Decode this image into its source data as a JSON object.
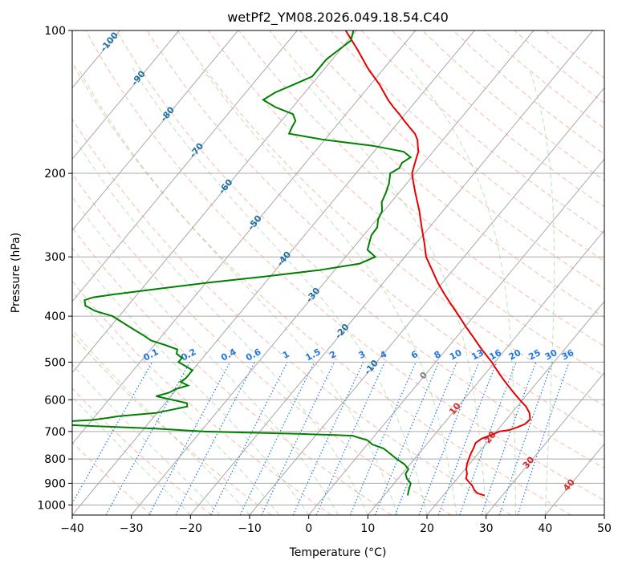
{
  "chart_data": {
    "type": "skew-t",
    "title": "wetPf2_YM08.2026.049.18.54.C40",
    "xlabel": "Temperature (°C)",
    "ylabel": "Pressure (hPa)",
    "xlim": [
      -40,
      50
    ],
    "ylim": [
      1050,
      100
    ],
    "x_ticks": [
      -40,
      -30,
      -20,
      -10,
      0,
      10,
      20,
      30,
      40,
      50
    ],
    "y_ticks": [
      100,
      200,
      300,
      400,
      500,
      600,
      700,
      800,
      900,
      1000
    ],
    "y_tick_labels": [
      "100",
      "200",
      "300",
      "400",
      "500",
      "600",
      "700",
      "800",
      "900",
      "1000"
    ],
    "x_tick_labels": [
      "−40",
      "−30",
      "−20",
      "−10",
      "0",
      "10",
      "20",
      "30",
      "40",
      "50"
    ],
    "colors": {
      "temperature": "#e60000",
      "dewpoint": "#008000",
      "isotherm_major": "#a8a8a8",
      "dry_adiabat": "#f5a58a",
      "moist_adiabat": "#8fd08f",
      "mixing_ratio": "#1f77e0",
      "isotherm_label": "#1f6fa8",
      "dry_adiabat_label": "#d62728"
    },
    "series": [
      {
        "name": "Temperature",
        "pressure": [
          955,
          945,
          930,
          910,
          895,
          880,
          860,
          840,
          820,
          800,
          780,
          760,
          740,
          725,
          710,
          700,
          695,
          685,
          675,
          660,
          640,
          620,
          600,
          580,
          560,
          540,
          520,
          500,
          470,
          440,
          420,
          400,
          380,
          360,
          340,
          320,
          300,
          280,
          260,
          240,
          220,
          205,
          200,
          195,
          190,
          185,
          180,
          175,
          170,
          165,
          160,
          155,
          150,
          145,
          140,
          130,
          120,
          110,
          100
        ],
        "temperature": [
          27.0,
          25.5,
          24.5,
          23.5,
          22.5,
          21.5,
          21.0,
          20.2,
          19.6,
          19.2,
          18.8,
          18.5,
          18.1,
          18.5,
          19.8,
          20.5,
          22.0,
          23.0,
          23.8,
          24.0,
          23.0,
          21.5,
          19.5,
          17.5,
          15.5,
          13.5,
          11.5,
          9.5,
          6.0,
          2.5,
          0.0,
          -2.5,
          -5.2,
          -8.0,
          -10.8,
          -13.5,
          -16.4,
          -18.7,
          -21.3,
          -24.0,
          -27.2,
          -29.7,
          -30.5,
          -31.0,
          -31.5,
          -32.0,
          -32.5,
          -33.4,
          -34.3,
          -35.6,
          -37.4,
          -39.2,
          -41.0,
          -43.0,
          -44.9,
          -48.5,
          -52.8,
          -57.0,
          -61.8
        ]
      },
      {
        "name": "Dewpoint",
        "pressure": [
          955,
          930,
          900,
          880,
          860,
          840,
          820,
          800,
          780,
          760,
          745,
          730,
          720,
          715,
          712,
          708,
          704,
          700,
          690,
          682,
          678,
          675,
          672,
          670,
          668,
          662,
          655,
          650,
          640,
          630,
          620,
          610,
          600,
          590,
          580,
          570,
          560,
          550,
          540,
          530,
          520,
          510,
          500,
          490,
          480,
          470,
          460,
          450,
          440,
          420,
          400,
          390,
          380,
          370,
          365,
          360,
          350,
          340,
          330,
          320,
          310,
          300,
          290,
          280,
          270,
          260,
          250,
          240,
          230,
          220,
          210,
          200,
          195,
          190,
          185,
          180,
          175,
          170,
          165,
          160,
          155,
          150,
          145,
          140,
          135,
          130,
          125,
          120,
          115,
          110,
          105,
          100
        ],
        "dewpoint": [
          14.0,
          13.4,
          12.8,
          11.5,
          10.6,
          10.4,
          9.0,
          7.0,
          5.2,
          3.3,
          0.8,
          -0.6,
          -2.7,
          -3.6,
          -6.8,
          -13.2,
          -21.8,
          -29.7,
          -38.0,
          -48.5,
          -53.5,
          -56.5,
          -56.8,
          -56.2,
          -55.3,
          -50.0,
          -47.5,
          -46.0,
          -40.2,
          -38.0,
          -35.8,
          -36.3,
          -39.3,
          -42.5,
          -40.8,
          -40.2,
          -38.6,
          -40.4,
          -40.0,
          -40.0,
          -40.0,
          -41.7,
          -43.5,
          -43.5,
          -45.0,
          -45.5,
          -48.2,
          -51.2,
          -53.0,
          -57.0,
          -61.1,
          -64.8,
          -67.2,
          -68.1,
          -67.0,
          -64.0,
          -57.0,
          -49.7,
          -41.0,
          -32.7,
          -26.7,
          -25.0,
          -27.3,
          -28.0,
          -28.7,
          -28.8,
          -29.8,
          -30.3,
          -31.6,
          -32.2,
          -33.0,
          -34.2,
          -33.4,
          -33.7,
          -33.0,
          -35.0,
          -41.0,
          -50.0,
          -56.9,
          -57.3,
          -57.6,
          -59.0,
          -63.0,
          -66.0,
          -65.0,
          -63.0,
          -61.0,
          -61.0,
          -61.0,
          -60.3,
          -59.5,
          -60.5
        ]
      }
    ],
    "annotations": {
      "mixing_ratio_labels": [
        "0.1",
        "0.2",
        "0.4",
        "0.6",
        "1",
        "1.5",
        "2",
        "3",
        "4",
        "6",
        "8",
        "10",
        "13",
        "16",
        "20",
        "25",
        "30",
        "36"
      ],
      "mixing_ratio_values": [
        0.1,
        0.2,
        0.4,
        0.6,
        1,
        1.5,
        2,
        3,
        4,
        6,
        8,
        10,
        13,
        16,
        20,
        25,
        30,
        36
      ],
      "isotherm_labels": [
        "-100",
        "-90",
        "-80",
        "-70",
        "-60",
        "-50",
        "-40",
        "-30",
        "-20",
        "-10"
      ],
      "isotherm_values": [
        -100,
        -90,
        -80,
        -70,
        -60,
        -50,
        -40,
        -30,
        -20,
        -10
      ],
      "dry_adiabat_labels": [
        "0",
        "10",
        "20",
        "30",
        "40"
      ],
      "dry_adiabat_values": [
        0,
        10,
        20,
        30,
        40
      ]
    }
  }
}
